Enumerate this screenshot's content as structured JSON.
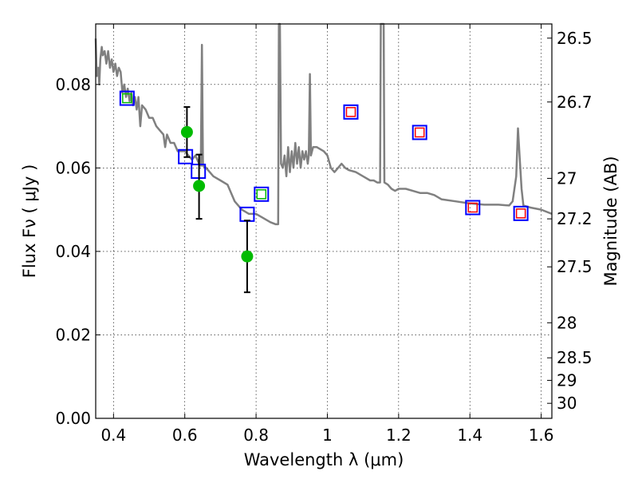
{
  "chart_data": {
    "type": "scatter",
    "title": "",
    "xlabel": "Wavelength  λ (μm)",
    "ylabel": "Flux  Fν  ( μJy )",
    "ylabel_right": "Magnitude (AB)",
    "xlim": [
      0.35,
      1.63
    ],
    "ylim": [
      0.0,
      0.0945
    ],
    "grid": true,
    "x_ticks": [
      {
        "v": 0.4,
        "t": "0.4"
      },
      {
        "v": 0.6,
        "t": "0.6"
      },
      {
        "v": 0.8,
        "t": "0.8"
      },
      {
        "v": 1.0,
        "t": "1"
      },
      {
        "v": 1.2,
        "t": "1.2"
      },
      {
        "v": 1.4,
        "t": "1.4"
      },
      {
        "v": 1.6,
        "t": "1.6"
      }
    ],
    "y_ticks": [
      {
        "v": 0.0,
        "t": "0.00"
      },
      {
        "v": 0.02,
        "t": "0.02"
      },
      {
        "v": 0.04,
        "t": "0.04"
      },
      {
        "v": 0.06,
        "t": "0.06"
      },
      {
        "v": 0.08,
        "t": "0.08"
      }
    ],
    "mag_ticks": [
      {
        "v": 0.0911,
        "t": "26.5"
      },
      {
        "v": 0.0758,
        "t": "26.7"
      },
      {
        "v": 0.0575,
        "t": "27"
      },
      {
        "v": 0.0478,
        "t": "27.2"
      },
      {
        "v": 0.0363,
        "t": "27.5"
      },
      {
        "v": 0.0229,
        "t": "28"
      },
      {
        "v": 0.0145,
        "t": "28.5"
      },
      {
        "v": 0.0091,
        "t": "29"
      },
      {
        "v": 0.0036,
        "t": "30"
      }
    ],
    "series": [
      {
        "kind": "template_spectrum",
        "color": "#808080",
        "points": [
          [
            0.35,
            0.091
          ],
          [
            0.353,
            0.082
          ],
          [
            0.357,
            0.084
          ],
          [
            0.36,
            0.08
          ],
          [
            0.363,
            0.086
          ],
          [
            0.367,
            0.089
          ],
          [
            0.37,
            0.087
          ],
          [
            0.375,
            0.088
          ],
          [
            0.38,
            0.085
          ],
          [
            0.385,
            0.088
          ],
          [
            0.39,
            0.084
          ],
          [
            0.395,
            0.086
          ],
          [
            0.4,
            0.083
          ],
          [
            0.405,
            0.085
          ],
          [
            0.41,
            0.082
          ],
          [
            0.415,
            0.084
          ],
          [
            0.42,
            0.083
          ],
          [
            0.425,
            0.078
          ],
          [
            0.43,
            0.08
          ],
          [
            0.435,
            0.077
          ],
          [
            0.44,
            0.079
          ],
          [
            0.445,
            0.076
          ],
          [
            0.45,
            0.078
          ],
          [
            0.455,
            0.075
          ],
          [
            0.46,
            0.077
          ],
          [
            0.465,
            0.074
          ],
          [
            0.47,
            0.077
          ],
          [
            0.475,
            0.07
          ],
          [
            0.48,
            0.075
          ],
          [
            0.49,
            0.074
          ],
          [
            0.5,
            0.072
          ],
          [
            0.51,
            0.072
          ],
          [
            0.52,
            0.07
          ],
          [
            0.53,
            0.069
          ],
          [
            0.54,
            0.068
          ],
          [
            0.545,
            0.065
          ],
          [
            0.55,
            0.068
          ],
          [
            0.56,
            0.066
          ],
          [
            0.57,
            0.066
          ],
          [
            0.58,
            0.064
          ],
          [
            0.59,
            0.064
          ],
          [
            0.6,
            0.064
          ],
          [
            0.61,
            0.063
          ],
          [
            0.62,
            0.062
          ],
          [
            0.63,
            0.063
          ],
          [
            0.64,
            0.061
          ],
          [
            0.645,
            0.0605
          ],
          [
            0.648,
            0.0895
          ],
          [
            0.651,
            0.0605
          ],
          [
            0.66,
            0.06
          ],
          [
            0.68,
            0.058
          ],
          [
            0.7,
            0.057
          ],
          [
            0.72,
            0.056
          ],
          [
            0.74,
            0.052
          ],
          [
            0.76,
            0.05
          ],
          [
            0.78,
            0.049
          ],
          [
            0.8,
            0.049
          ],
          [
            0.82,
            0.048
          ],
          [
            0.84,
            0.047
          ],
          [
            0.855,
            0.0465
          ],
          [
            0.862,
            0.0465
          ],
          [
            0.864,
            0.0945
          ],
          [
            0.867,
            0.0945
          ],
          [
            0.87,
            0.061
          ],
          [
            0.875,
            0.06
          ],
          [
            0.88,
            0.063
          ],
          [
            0.885,
            0.058
          ],
          [
            0.89,
            0.065
          ],
          [
            0.895,
            0.059
          ],
          [
            0.9,
            0.064
          ],
          [
            0.905,
            0.06
          ],
          [
            0.91,
            0.066
          ],
          [
            0.915,
            0.061
          ],
          [
            0.92,
            0.065
          ],
          [
            0.925,
            0.06
          ],
          [
            0.93,
            0.064
          ],
          [
            0.935,
            0.062
          ],
          [
            0.94,
            0.064
          ],
          [
            0.945,
            0.061
          ],
          [
            0.948,
            0.063
          ],
          [
            0.951,
            0.0825
          ],
          [
            0.954,
            0.063
          ],
          [
            0.96,
            0.065
          ],
          [
            0.97,
            0.065
          ],
          [
            0.98,
            0.0645
          ],
          [
            0.99,
            0.064
          ],
          [
            1.0,
            0.063
          ],
          [
            1.01,
            0.06
          ],
          [
            1.02,
            0.059
          ],
          [
            1.03,
            0.06
          ],
          [
            1.04,
            0.061
          ],
          [
            1.05,
            0.06
          ],
          [
            1.06,
            0.0595
          ],
          [
            1.08,
            0.059
          ],
          [
            1.1,
            0.058
          ],
          [
            1.12,
            0.057
          ],
          [
            1.13,
            0.057
          ],
          [
            1.14,
            0.0565
          ],
          [
            1.148,
            0.0565
          ],
          [
            1.15,
            0.0945
          ],
          [
            1.158,
            0.0945
          ],
          [
            1.16,
            0.0565
          ],
          [
            1.17,
            0.056
          ],
          [
            1.18,
            0.055
          ],
          [
            1.19,
            0.0545
          ],
          [
            1.2,
            0.055
          ],
          [
            1.22,
            0.055
          ],
          [
            1.24,
            0.0545
          ],
          [
            1.26,
            0.054
          ],
          [
            1.28,
            0.054
          ],
          [
            1.3,
            0.0535
          ],
          [
            1.32,
            0.0525
          ],
          [
            1.36,
            0.052
          ],
          [
            1.4,
            0.0515
          ],
          [
            1.44,
            0.0512
          ],
          [
            1.48,
            0.0512
          ],
          [
            1.51,
            0.051
          ],
          [
            1.52,
            0.052
          ],
          [
            1.53,
            0.058
          ],
          [
            1.535,
            0.0695
          ],
          [
            1.54,
            0.062
          ],
          [
            1.545,
            0.055
          ],
          [
            1.55,
            0.051
          ],
          [
            1.57,
            0.0505
          ],
          [
            1.6,
            0.05
          ],
          [
            1.63,
            0.049
          ]
        ]
      },
      {
        "kind": "model_flux_squares",
        "color": "#0000ff",
        "points": [
          [
            0.438,
            0.0767
          ],
          [
            0.602,
            0.0627
          ],
          [
            0.638,
            0.0592
          ],
          [
            0.775,
            0.0489
          ],
          [
            0.815,
            0.0537
          ],
          [
            1.066,
            0.0734
          ],
          [
            1.259,
            0.0685
          ],
          [
            1.408,
            0.0505
          ],
          [
            1.543,
            0.0491
          ]
        ]
      },
      {
        "kind": "observed_fluxes",
        "color": "#00bb00",
        "points": [
          [
            0.606,
            0.0686
          ],
          [
            0.64,
            0.0557
          ],
          [
            0.775,
            0.0388
          ]
        ],
        "errors": [
          [
            0.606,
            0.0626,
            0.0746
          ],
          [
            0.64,
            0.0478,
            0.0632
          ],
          [
            0.775,
            0.0302,
            0.0474
          ]
        ]
      },
      {
        "kind": "upper_limit_boxes",
        "color": "#ff0000",
        "points": [
          [
            1.066,
            0.0734
          ],
          [
            1.259,
            0.0685
          ],
          [
            1.408,
            0.0505
          ],
          [
            1.543,
            0.0491
          ]
        ]
      },
      {
        "kind": "green_inner_boxes",
        "color": "#00bb00",
        "points": [
          [
            0.438,
            0.0767
          ],
          [
            0.815,
            0.0537
          ]
        ]
      }
    ]
  }
}
